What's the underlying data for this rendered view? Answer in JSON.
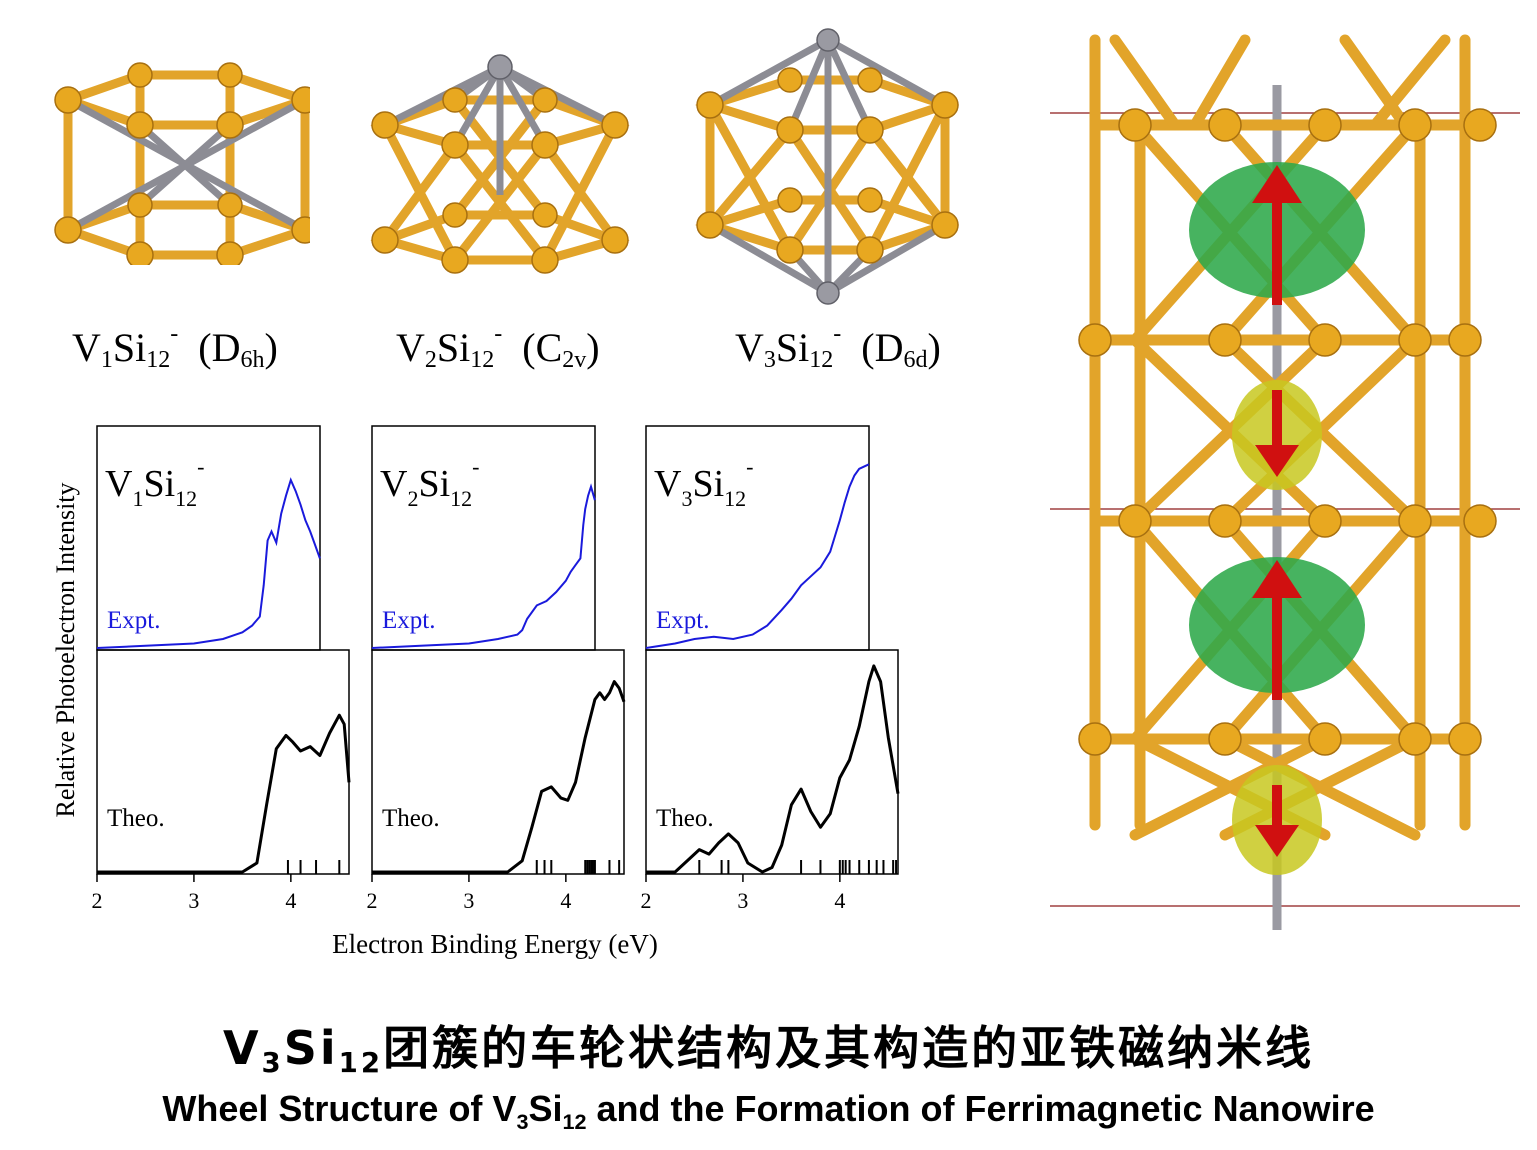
{
  "clusters": [
    {
      "formula_main": "V",
      "n": "1",
      "si": "Si",
      "m": "12",
      "charge": "-",
      "sym": "D",
      "sym_sub": "6h"
    },
    {
      "formula_main": "V",
      "n": "2",
      "si": "Si",
      "m": "12",
      "charge": "-",
      "sym": "C",
      "sym_sub": "2v"
    },
    {
      "formula_main": "V",
      "n": "3",
      "si": "Si",
      "m": "12",
      "charge": "-",
      "sym": "D",
      "sym_sub": "6d"
    }
  ],
  "colors": {
    "si_atom": "#e8a820",
    "bond": "#e2a42a",
    "v_atom": "#8c8c94",
    "expt_line": "#1a1adc",
    "theo_line": "#000000",
    "spin_up": "#2ea84a",
    "spin_down": "#c8c820",
    "arrow": "#d01010",
    "guide_line": "#a04040"
  },
  "chart_data": [
    {
      "type": "line",
      "name_main": "V",
      "name_n": "1",
      "name_si": "Si",
      "name_m": "12",
      "name_charge": "-",
      "expt_label": "Expt.",
      "theo_label": "Theo.",
      "xlim": [
        2,
        4.6
      ],
      "xticks": [
        "2",
        "3",
        "4"
      ],
      "expt": {
        "x": [
          2.0,
          2.5,
          3.0,
          3.3,
          3.5,
          3.6,
          3.68,
          3.72,
          3.76,
          3.8,
          3.85,
          3.9,
          3.95,
          4.0,
          4.05,
          4.1,
          4.15,
          4.2,
          4.25,
          4.3
        ],
        "y": [
          0.0,
          0.01,
          0.02,
          0.04,
          0.07,
          0.1,
          0.14,
          0.28,
          0.48,
          0.52,
          0.47,
          0.6,
          0.68,
          0.75,
          0.7,
          0.64,
          0.57,
          0.52,
          0.46,
          0.4
        ]
      },
      "theo": {
        "x": [
          2.0,
          3.5,
          3.65,
          3.75,
          3.85,
          3.95,
          4.02,
          4.1,
          4.2,
          4.3,
          4.4,
          4.5,
          4.55,
          4.6
        ],
        "y": [
          0.0,
          0.0,
          0.04,
          0.3,
          0.55,
          0.61,
          0.58,
          0.54,
          0.56,
          0.52,
          0.62,
          0.7,
          0.66,
          0.4
        ]
      },
      "sticks": [
        3.97,
        4.1,
        4.26,
        4.5
      ]
    },
    {
      "type": "line",
      "name_main": "V",
      "name_n": "2",
      "name_si": "Si",
      "name_m": "12",
      "name_charge": "-",
      "expt_label": "Expt.",
      "theo_label": "Theo.",
      "xlim": [
        2,
        4.6
      ],
      "xticks": [
        "2",
        "3",
        "4"
      ],
      "expt": {
        "x": [
          2.0,
          2.5,
          3.0,
          3.3,
          3.5,
          3.55,
          3.6,
          3.7,
          3.8,
          3.9,
          4.0,
          4.05,
          4.1,
          4.15,
          4.18,
          4.2,
          4.23,
          4.26,
          4.3
        ],
        "y": [
          0.0,
          0.01,
          0.02,
          0.04,
          0.06,
          0.08,
          0.13,
          0.19,
          0.21,
          0.25,
          0.3,
          0.34,
          0.37,
          0.4,
          0.55,
          0.62,
          0.68,
          0.72,
          0.66
        ]
      },
      "theo": {
        "x": [
          2.0,
          3.4,
          3.55,
          3.65,
          3.75,
          3.85,
          3.95,
          4.02,
          4.1,
          4.2,
          4.3,
          4.35,
          4.4,
          4.45,
          4.5,
          4.55,
          4.6
        ],
        "y": [
          0.0,
          0.0,
          0.05,
          0.2,
          0.36,
          0.38,
          0.33,
          0.32,
          0.4,
          0.6,
          0.77,
          0.8,
          0.77,
          0.8,
          0.85,
          0.82,
          0.76
        ]
      },
      "sticks": [
        3.7,
        3.78,
        3.85,
        4.2,
        4.22,
        4.24,
        4.26,
        4.28,
        4.3,
        4.45,
        4.55
      ]
    },
    {
      "type": "line",
      "name_main": "V",
      "name_n": "3",
      "name_si": "Si",
      "name_m": "12",
      "name_charge": "-",
      "expt_label": "Expt.",
      "theo_label": "Theo.",
      "xlim": [
        2,
        4.6
      ],
      "xticks": [
        "2",
        "3",
        "4"
      ],
      "expt": {
        "x": [
          2.0,
          2.3,
          2.5,
          2.7,
          2.9,
          3.1,
          3.25,
          3.4,
          3.5,
          3.6,
          3.7,
          3.8,
          3.9,
          3.95,
          4.0,
          4.05,
          4.1,
          4.15,
          4.2,
          4.3
        ],
        "y": [
          0.0,
          0.02,
          0.04,
          0.05,
          0.04,
          0.06,
          0.1,
          0.17,
          0.22,
          0.28,
          0.32,
          0.36,
          0.43,
          0.5,
          0.57,
          0.65,
          0.72,
          0.77,
          0.8,
          0.82
        ]
      },
      "theo": {
        "x": [
          2.0,
          2.3,
          2.45,
          2.55,
          2.65,
          2.75,
          2.85,
          2.95,
          3.05,
          3.2,
          3.3,
          3.4,
          3.5,
          3.6,
          3.7,
          3.8,
          3.9,
          4.0,
          4.1,
          4.2,
          4.3,
          4.35,
          4.42,
          4.5,
          4.6
        ],
        "y": [
          0.0,
          0.0,
          0.06,
          0.1,
          0.08,
          0.13,
          0.17,
          0.13,
          0.04,
          0.0,
          0.02,
          0.12,
          0.3,
          0.37,
          0.27,
          0.2,
          0.26,
          0.42,
          0.5,
          0.65,
          0.85,
          0.92,
          0.85,
          0.6,
          0.35
        ]
      },
      "sticks": [
        2.55,
        2.78,
        2.85,
        3.6,
        3.8,
        4.0,
        4.03,
        4.06,
        4.1,
        4.2,
        4.3,
        4.38,
        4.45,
        4.55,
        4.58
      ]
    }
  ],
  "axis": {
    "ylabel": "Relative Photoelectron Intensity",
    "xlabel": "Electron Binding Energy (eV)"
  },
  "title_cn": {
    "pre": "V",
    "n": "3",
    "si": "Si",
    "m": "12",
    "rest": "团簇的车轮状结构及其构造的亚铁磁纳米线"
  },
  "title_en": {
    "pre": "Wheel Structure of V",
    "n": "3",
    "si": "Si",
    "m": "12",
    "rest": " and the Formation of Ferrimagnetic Nanowire"
  }
}
